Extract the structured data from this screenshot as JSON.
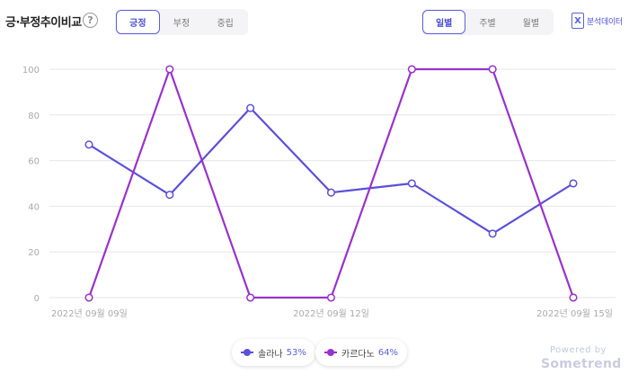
{
  "header": {
    "title": "긍·부정추이비교",
    "help_glyph": "?",
    "sentiment_tabs": [
      {
        "label": "긍정",
        "active": true
      },
      {
        "label": "부정",
        "active": false
      },
      {
        "label": "중립",
        "active": false
      }
    ],
    "period_tabs": [
      {
        "label": "일별",
        "active": true
      },
      {
        "label": "주별",
        "active": false
      },
      {
        "label": "월별",
        "active": false
      }
    ],
    "export_label": "분석데이터",
    "export_glyph": "X"
  },
  "chart_data": {
    "type": "line",
    "x": [
      "2022-09-09",
      "2022-09-10",
      "2022-09-11",
      "2022-09-12",
      "2022-09-13",
      "2022-09-14",
      "2022-09-15"
    ],
    "x_tick_labels": [
      {
        "index": 0,
        "label": "2022년 09월 09일"
      },
      {
        "index": 3,
        "label": "2022년 09월 12일"
      },
      {
        "index": 6,
        "label": "2022년 09월 15일"
      }
    ],
    "y_ticks": [
      0,
      20,
      40,
      60,
      80,
      100
    ],
    "ylim": [
      0,
      100
    ],
    "grid": true,
    "series": [
      {
        "name": "솔라나",
        "percent": "53%",
        "color": "#5b4fd9",
        "values": [
          67,
          45,
          83,
          46,
          50,
          28,
          50
        ]
      },
      {
        "name": "카르다노",
        "percent": "64%",
        "color": "#9932cc",
        "values": [
          0,
          100,
          0,
          0,
          100,
          100,
          0
        ]
      }
    ]
  },
  "footer": {
    "powered_by": "Powered by",
    "brand": "Sometrend"
  }
}
